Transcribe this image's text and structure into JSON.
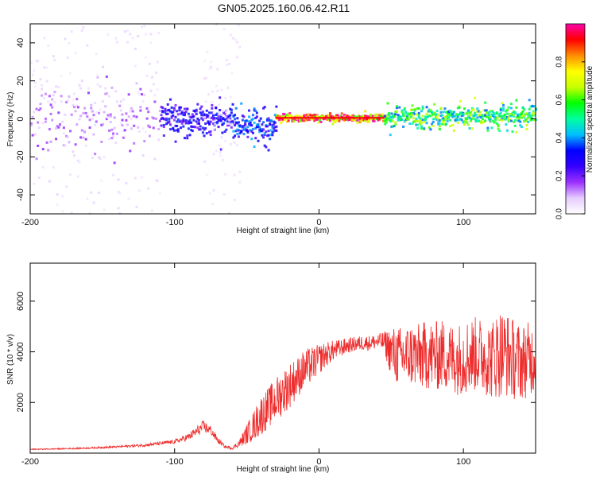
{
  "figure": {
    "title": "GN05.2025.160.06.42.R11"
  },
  "chart_data": [
    {
      "type": "heatmap",
      "title": "GN05.2025.160.06.42.R11",
      "xlabel": "Height of straight line (km)",
      "ylabel": "Frequency (Hz)",
      "xlim": [
        -200,
        150
      ],
      "ylim": [
        -50,
        50
      ],
      "x_ticks": [
        -200,
        -100,
        0,
        100
      ],
      "y_ticks": [
        -40,
        -20,
        0,
        20,
        40
      ],
      "colorbar": {
        "label": "Normalized spectral amplitude",
        "range": [
          0,
          1
        ],
        "ticks": [
          0.0,
          0.2,
          0.4,
          0.6,
          0.8
        ],
        "tick_labels": [
          "0.0",
          "0.2",
          "0.4",
          "0.6",
          "0.8"
        ],
        "colormap": [
          "#ffffff",
          "#e6ccff",
          "#9b30ff",
          "#3300ff",
          "#0000ff",
          "#00bfff",
          "#00ff9f",
          "#00ff00",
          "#c8ff00",
          "#ffff00",
          "#ff8c00",
          "#ff0000",
          "#ff00aa"
        ]
      },
      "features": [
        {
          "x_range": [
            -200,
            -110
          ],
          "f_center": 0,
          "f_spread": 8,
          "amplitude": 0.15,
          "noise_spread": 50
        },
        {
          "x_range": [
            -110,
            -60
          ],
          "f_center": 0,
          "f_spread": 4,
          "amplitude": 0.3
        },
        {
          "x_range": [
            -80,
            -55
          ],
          "f_center": 0,
          "f_spread": 50,
          "amplitude": 0.05
        },
        {
          "x_range": [
            -60,
            -30
          ],
          "f_center": -3,
          "f_spread": 4,
          "amplitude": 0.35
        },
        {
          "x_range": [
            -30,
            45
          ],
          "f_center": 0.5,
          "f_spread": 1,
          "amplitude": 0.95
        },
        {
          "x_range": [
            45,
            150
          ],
          "f_center": 1,
          "f_spread": 3,
          "amplitude": 0.6
        }
      ],
      "grid": false
    },
    {
      "type": "line",
      "xlabel": "Height of straight line (km)",
      "ylabel": "SNR (10 * v/v)",
      "xlim": [
        -200,
        150
      ],
      "ylim": [
        0,
        7500
      ],
      "x_ticks": [
        -200,
        -100,
        0,
        100
      ],
      "y_ticks": [
        2000,
        4000,
        6000
      ],
      "series": [
        {
          "color": "#ee2c2c",
          "x": [
            -200,
            -180,
            -160,
            -140,
            -120,
            -100,
            -90,
            -85,
            -80,
            -75,
            -70,
            -65,
            -60,
            -55,
            -50,
            -45,
            -40,
            -35,
            -30,
            -25,
            -20,
            -15,
            -10,
            -5,
            0,
            5,
            10,
            15,
            20,
            25,
            30,
            35,
            40,
            45,
            50,
            55,
            60,
            65,
            70,
            75,
            80,
            85,
            90,
            95,
            100,
            105,
            110,
            115,
            120,
            125,
            130,
            135,
            140,
            145,
            150
          ],
          "y": [
            150,
            170,
            200,
            250,
            320,
            450,
            650,
            850,
            1050,
            900,
            500,
            250,
            200,
            400,
            750,
            1100,
            1500,
            1800,
            2100,
            2400,
            2700,
            3000,
            3300,
            3500,
            3700,
            3900,
            4050,
            4150,
            4250,
            4300,
            4350,
            4350,
            4400,
            4400,
            4000,
            3800,
            3850,
            3900,
            3800,
            3900,
            3800,
            3900,
            3800,
            3700,
            3800,
            3900,
            3900,
            3800,
            3700,
            4000,
            3900,
            3700,
            3600,
            3700,
            3800
          ],
          "noise": [
            20,
            25,
            30,
            40,
            60,
            80,
            150,
            200,
            250,
            200,
            120,
            60,
            60,
            150,
            400,
            600,
            800,
            800,
            900,
            900,
            900,
            800,
            800,
            700,
            600,
            500,
            400,
            350,
            300,
            300,
            300,
            300,
            300,
            400,
            1000,
            1200,
            1200,
            1300,
            1300,
            1400,
            1400,
            1400,
            1400,
            1400,
            1500,
            1500,
            1500,
            1500,
            1600,
            1800,
            1700,
            1600,
            1500,
            1500,
            1400
          ]
        }
      ],
      "grid": false
    }
  ]
}
